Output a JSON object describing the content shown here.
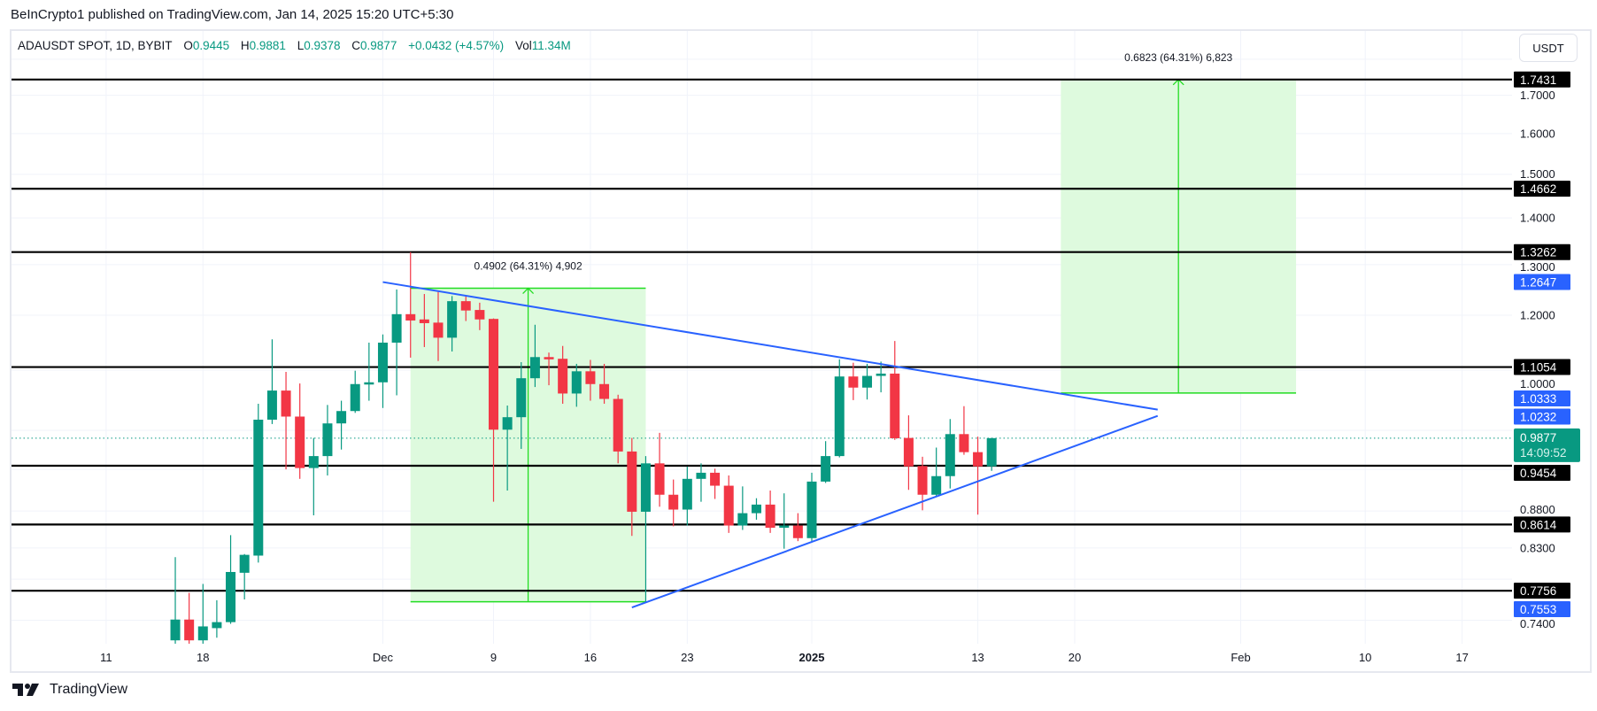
{
  "header": {
    "text": "BeInCrypto1 published on TradingView.com, Jan 14, 2025 15:20 UTC+5:30"
  },
  "legend": {
    "symbol": "ADAUSDT SPOT, 1D, BYBIT",
    "o_label": "O",
    "o": "0.9445",
    "h_label": "H",
    "h": "0.9881",
    "l_label": "L",
    "l": "0.9378",
    "c_label": "C",
    "c": "0.9877",
    "change": "+0.0432 (+4.57%)",
    "vol_label": "Vol",
    "vol": "11.34M"
  },
  "currency_button": "USDT",
  "footer": {
    "brand": "TradingView"
  },
  "colors": {
    "up": "#089981",
    "down": "#f23645",
    "trendline": "#2962ff",
    "level": "#000000",
    "box_fill": "#dcfadc",
    "box_line": "#22dd22"
  },
  "chart_data": {
    "type": "candlestick",
    "symbol": "ADAUSDT",
    "interval": "1D",
    "y_scale": "log",
    "grid": true,
    "price_ticks": [
      "1.7000",
      "1.6000",
      "1.5000",
      "1.4000",
      "1.3000",
      "1.2000",
      "1.0000",
      "0.8800",
      "0.8300",
      "0.7400"
    ],
    "time_ticks": [
      {
        "label": "11",
        "date": "2024-11-11"
      },
      {
        "label": "18",
        "date": "2024-11-18"
      },
      {
        "label": "Dec",
        "date": "2024-12-01"
      },
      {
        "label": "9",
        "date": "2024-12-09"
      },
      {
        "label": "16",
        "date": "2024-12-16"
      },
      {
        "label": "23",
        "date": "2024-12-23"
      },
      {
        "label": "2025",
        "date": "2025-01-01",
        "bold": true
      },
      {
        "label": "13",
        "date": "2025-01-13"
      },
      {
        "label": "20",
        "date": "2025-01-20"
      },
      {
        "label": "Feb",
        "date": "2025-02-01"
      },
      {
        "label": "10",
        "date": "2025-02-10"
      },
      {
        "label": "17",
        "date": "2025-02-17"
      }
    ],
    "candles_columns": [
      "date",
      "open",
      "high",
      "low",
      "close"
    ],
    "candles": [
      [
        "2024-11-16",
        0.717,
        0.818,
        0.705,
        0.741
      ],
      [
        "2024-11-17",
        0.741,
        0.773,
        0.705,
        0.717
      ],
      [
        "2024-11-18",
        0.717,
        0.784,
        0.705,
        0.733
      ],
      [
        "2024-11-19",
        0.731,
        0.764,
        0.72,
        0.738
      ],
      [
        "2024-11-20",
        0.738,
        0.847,
        0.736,
        0.799
      ],
      [
        "2024-11-21",
        0.798,
        0.822,
        0.765,
        0.821
      ],
      [
        "2024-11-22",
        0.82,
        1.043,
        0.811,
        1.017
      ],
      [
        "2024-11-23",
        1.017,
        1.155,
        1.01,
        1.065
      ],
      [
        "2024-11-24",
        1.065,
        1.097,
        0.94,
        1.022
      ],
      [
        "2024-11-25",
        1.022,
        1.077,
        0.926,
        0.942
      ],
      [
        "2024-11-26",
        0.942,
        0.988,
        0.874,
        0.96
      ],
      [
        "2024-11-27",
        0.96,
        1.041,
        0.931,
        1.011
      ],
      [
        "2024-11-28",
        1.011,
        1.048,
        0.97,
        1.031
      ],
      [
        "2024-11-29",
        1.031,
        1.099,
        1.028,
        1.076
      ],
      [
        "2024-11-30",
        1.076,
        1.149,
        1.048,
        1.079
      ],
      [
        "2024-12-01",
        1.079,
        1.164,
        1.036,
        1.149
      ],
      [
        "2024-12-02",
        1.149,
        1.25,
        1.057,
        1.202
      ],
      [
        "2024-12-03",
        1.202,
        1.326,
        1.122,
        1.19
      ],
      [
        "2024-12-04",
        1.192,
        1.241,
        1.141,
        1.185
      ],
      [
        "2024-12-05",
        1.186,
        1.245,
        1.116,
        1.158
      ],
      [
        "2024-12-06",
        1.158,
        1.237,
        1.133,
        1.227
      ],
      [
        "2024-12-07",
        1.227,
        1.236,
        1.189,
        1.209
      ],
      [
        "2024-12-08",
        1.21,
        1.224,
        1.172,
        1.192
      ],
      [
        "2024-12-09",
        1.193,
        1.194,
        0.893,
        1.001
      ],
      [
        "2024-12-10",
        1.001,
        1.04,
        0.909,
        1.021
      ],
      [
        "2024-12-11",
        1.021,
        1.114,
        0.971,
        1.086
      ],
      [
        "2024-12-12",
        1.086,
        1.182,
        1.071,
        1.123
      ],
      [
        "2024-12-13",
        1.123,
        1.131,
        1.074,
        1.119
      ],
      [
        "2024-12-14",
        1.12,
        1.143,
        1.043,
        1.06
      ],
      [
        "2024-12-15",
        1.06,
        1.111,
        1.038,
        1.098
      ],
      [
        "2024-12-16",
        1.098,
        1.118,
        1.048,
        1.076
      ],
      [
        "2024-12-17",
        1.076,
        1.111,
        1.043,
        1.051
      ],
      [
        "2024-12-18",
        1.051,
        1.058,
        0.949,
        0.967
      ],
      [
        "2024-12-19",
        0.967,
        0.988,
        0.846,
        0.879
      ],
      [
        "2024-12-20",
        0.879,
        0.96,
        0.762,
        0.949
      ],
      [
        "2024-12-21",
        0.949,
        0.996,
        0.886,
        0.903
      ],
      [
        "2024-12-22",
        0.903,
        0.925,
        0.859,
        0.882
      ],
      [
        "2024-12-23",
        0.882,
        0.944,
        0.86,
        0.926
      ],
      [
        "2024-12-24",
        0.926,
        0.949,
        0.893,
        0.935
      ],
      [
        "2024-12-25",
        0.935,
        0.941,
        0.897,
        0.916
      ],
      [
        "2024-12-26",
        0.916,
        0.931,
        0.85,
        0.86
      ],
      [
        "2024-12-27",
        0.86,
        0.915,
        0.854,
        0.877
      ],
      [
        "2024-12-28",
        0.877,
        0.898,
        0.868,
        0.889
      ],
      [
        "2024-12-29",
        0.889,
        0.909,
        0.85,
        0.857
      ],
      [
        "2024-12-30",
        0.857,
        0.905,
        0.829,
        0.86
      ],
      [
        "2024-12-31",
        0.86,
        0.877,
        0.839,
        0.843
      ],
      [
        "2025-01-01",
        0.843,
        0.935,
        0.838,
        0.922
      ],
      [
        "2025-01-02",
        0.922,
        0.983,
        0.92,
        0.96
      ],
      [
        "2025-01-03",
        0.96,
        1.119,
        0.958,
        1.089
      ],
      [
        "2025-01-04",
        1.089,
        1.113,
        1.049,
        1.07
      ],
      [
        "2025-01-05",
        1.07,
        1.111,
        1.05,
        1.09
      ],
      [
        "2025-01-06",
        1.09,
        1.115,
        1.062,
        1.094
      ],
      [
        "2025-01-07",
        1.094,
        1.152,
        0.985,
        0.9875
      ],
      [
        "2025-01-08",
        0.988,
        1.024,
        0.91,
        0.9445
      ],
      [
        "2025-01-09",
        0.945,
        0.959,
        0.881,
        0.903
      ],
      [
        "2025-01-10",
        0.903,
        0.973,
        0.901,
        0.93
      ],
      [
        "2025-01-11",
        0.93,
        1.018,
        0.912,
        0.994
      ],
      [
        "2025-01-12",
        0.994,
        1.039,
        0.962,
        0.966
      ],
      [
        "2025-01-13",
        0.966,
        0.99,
        0.875,
        0.9445
      ],
      [
        "2025-01-14",
        0.9445,
        0.9881,
        0.9378,
        0.9877
      ]
    ],
    "horizontal_levels": [
      "1.7431",
      "1.4662",
      "1.3262",
      "1.1054",
      "0.9454",
      "0.8614",
      "0.7756"
    ],
    "trendlines": [
      {
        "from": [
          "2024-12-01",
          1.2647
        ],
        "to": [
          "2025-01-26",
          1.0333
        ]
      },
      {
        "from": [
          "2024-12-19",
          0.7553
        ],
        "to": [
          "2025-01-26",
          1.0232
        ]
      }
    ],
    "trendline_labels": [
      "1.2647",
      "1.0333",
      "1.0232",
      "0.7553"
    ],
    "price_range_boxes": [
      {
        "from_date": "2024-12-03",
        "to_date": "2024-12-20",
        "low": 0.7622,
        "high": 1.2524,
        "label": "0.4902 (64.31%) 4,902"
      },
      {
        "from_date": "2025-01-19",
        "to_date": "2025-02-05",
        "low": 1.0608,
        "high": 1.7431,
        "label": "0.6823 (64.31%) 6,823"
      }
    ],
    "last_price": {
      "value": "0.9877",
      "countdown": "14:09:52"
    }
  }
}
